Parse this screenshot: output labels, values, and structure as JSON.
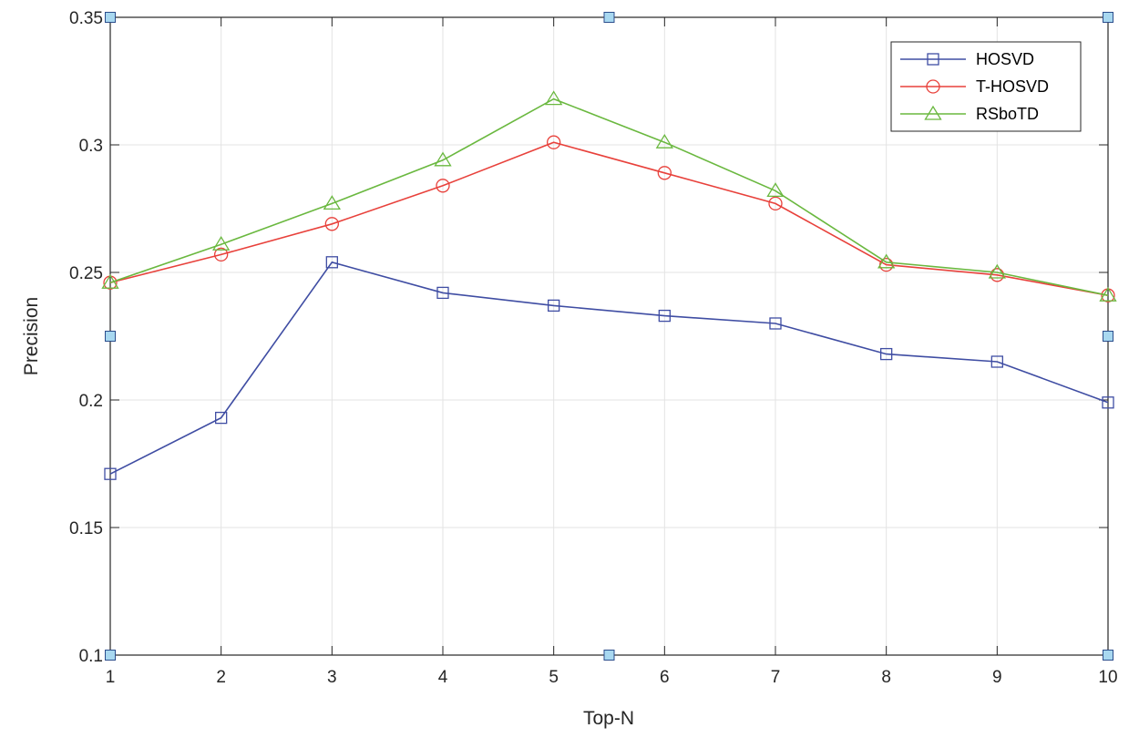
{
  "chart_data": {
    "type": "line",
    "title": "",
    "xlabel": "Top-N",
    "ylabel": "Precision",
    "x": [
      1,
      2,
      3,
      4,
      5,
      6,
      7,
      8,
      9,
      10
    ],
    "xlim": [
      1,
      10
    ],
    "ylim": [
      0.1,
      0.35
    ],
    "xticks": [
      "1",
      "2",
      "3",
      "4",
      "5",
      "6",
      "7",
      "8",
      "9",
      "10"
    ],
    "yticks": [
      "0.1",
      "0.15",
      "0.2",
      "0.25",
      "0.3",
      "0.35"
    ],
    "grid": true,
    "legend_position": "top-right",
    "series": [
      {
        "name": "HOSVD",
        "marker": "square",
        "color": "#3f4da3",
        "values": [
          0.171,
          0.193,
          0.254,
          0.242,
          0.237,
          0.233,
          0.23,
          0.218,
          0.215,
          0.199
        ]
      },
      {
        "name": "T-HOSVD",
        "marker": "circle",
        "color": "#e8413b",
        "values": [
          0.246,
          0.257,
          0.269,
          0.284,
          0.301,
          0.289,
          0.277,
          0.253,
          0.249,
          0.241
        ]
      },
      {
        "name": "RSboTD",
        "marker": "triangle",
        "color": "#6ab83f",
        "values": [
          0.246,
          0.261,
          0.277,
          0.294,
          0.318,
          0.301,
          0.282,
          0.254,
          0.25,
          0.241
        ]
      }
    ],
    "edit_handles": {
      "color": "#a8d8f0",
      "points": [
        [
          1,
          0.35
        ],
        [
          5.5,
          0.35
        ],
        [
          10,
          0.35
        ],
        [
          1,
          0.225
        ],
        [
          10,
          0.225
        ],
        [
          1,
          0.1
        ],
        [
          5.5,
          0.1
        ],
        [
          10,
          0.1
        ]
      ]
    }
  }
}
